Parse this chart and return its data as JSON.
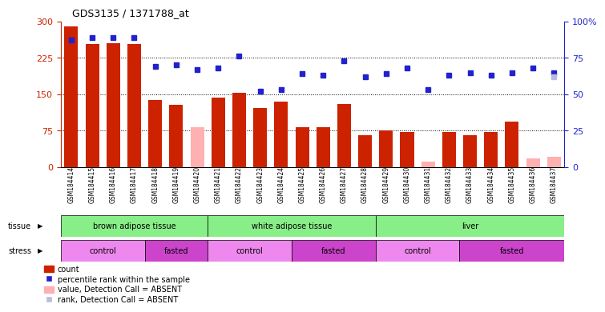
{
  "title": "GDS3135 / 1371788_at",
  "samples": [
    "GSM184414",
    "GSM184415",
    "GSM184416",
    "GSM184417",
    "GSM184418",
    "GSM184419",
    "GSM184420",
    "GSM184421",
    "GSM184422",
    "GSM184423",
    "GSM184424",
    "GSM184425",
    "GSM184426",
    "GSM184427",
    "GSM184428",
    "GSM184429",
    "GSM184430",
    "GSM184431",
    "GSM184432",
    "GSM184433",
    "GSM184434",
    "GSM184435",
    "GSM184436",
    "GSM184437"
  ],
  "count_values": [
    290,
    253,
    255,
    253,
    138,
    128,
    null,
    143,
    153,
    122,
    135,
    82,
    83,
    130,
    65,
    75,
    72,
    null,
    73,
    65,
    72,
    93,
    null,
    null
  ],
  "count_absent": [
    null,
    null,
    null,
    null,
    null,
    null,
    82,
    null,
    null,
    null,
    null,
    null,
    null,
    null,
    null,
    null,
    null,
    12,
    null,
    null,
    null,
    null,
    18,
    22
  ],
  "rank_values": [
    87,
    89,
    89,
    89,
    69,
    70,
    null,
    68,
    76,
    52,
    53,
    64,
    63,
    73,
    62,
    64,
    68,
    null,
    63,
    65,
    63,
    65,
    null,
    65
  ],
  "rank_absent": [
    null,
    null,
    null,
    null,
    null,
    null,
    67,
    null,
    null,
    null,
    null,
    null,
    null,
    null,
    null,
    null,
    null,
    53,
    null,
    null,
    null,
    null,
    68,
    null
  ],
  "rank_absent_light": [
    null,
    null,
    null,
    null,
    null,
    null,
    null,
    null,
    null,
    null,
    null,
    null,
    null,
    null,
    null,
    null,
    null,
    null,
    null,
    null,
    null,
    null,
    null,
    62
  ],
  "ylim_left": [
    0,
    300
  ],
  "ylim_right": [
    0,
    100
  ],
  "yticks_left": [
    0,
    75,
    150,
    225,
    300
  ],
  "ytick_labels_left": [
    "0",
    "75",
    "150",
    "225",
    "300"
  ],
  "yticks_right": [
    0,
    25,
    50,
    75,
    100
  ],
  "ytick_labels_right": [
    "0",
    "25",
    "50",
    "75",
    "100%"
  ],
  "bar_color": "#cc2200",
  "bar_absent_color": "#ffb0b0",
  "dot_color": "#2222cc",
  "dot_absent_color": "#9999cc",
  "dot_absent_light_color": "#bbbbdd",
  "plot_bg": "#ffffff",
  "xtick_bg": "#d8d8d8",
  "tissue_color": "#88ee88",
  "stress_control_color": "#ee88ee",
  "stress_fasted_color": "#cc44cc",
  "tissue_groups": [
    {
      "label": "brown adipose tissue",
      "start": 0,
      "end": 7
    },
    {
      "label": "white adipose tissue",
      "start": 7,
      "end": 15
    },
    {
      "label": "liver",
      "start": 15,
      "end": 24
    }
  ],
  "stress_groups": [
    {
      "label": "control",
      "start": 0,
      "end": 4,
      "type": "control"
    },
    {
      "label": "fasted",
      "start": 4,
      "end": 7,
      "type": "fasted"
    },
    {
      "label": "control",
      "start": 7,
      "end": 11,
      "type": "control"
    },
    {
      "label": "fasted",
      "start": 11,
      "end": 15,
      "type": "fasted"
    },
    {
      "label": "control",
      "start": 15,
      "end": 19,
      "type": "control"
    },
    {
      "label": "fasted",
      "start": 19,
      "end": 24,
      "type": "fasted"
    }
  ]
}
